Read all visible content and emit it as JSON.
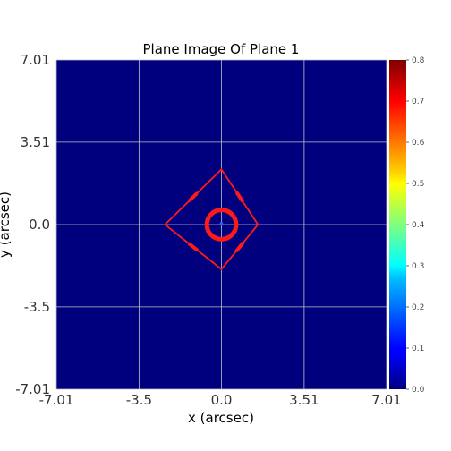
{
  "chart_data": {
    "type": "heatmap",
    "title": "Plane Image Of Plane 1",
    "xlabel": "x (arcsec)",
    "ylabel": "y (arcsec)",
    "xlim": [
      -7.01,
      7.01
    ],
    "ylim": [
      -7.01,
      7.01
    ],
    "x_ticks": [
      -7.01,
      -3.5,
      0.0,
      3.51,
      7.01
    ],
    "x_tick_labels": [
      "-7.01",
      "-3.5",
      "0.0",
      "3.51",
      "7.01"
    ],
    "y_ticks": [
      7.01,
      3.51,
      0.0,
      -3.5,
      -7.01
    ],
    "y_tick_labels": [
      "7.01",
      "3.51",
      "0.0",
      "-3.5",
      "-7.01"
    ],
    "grid": true,
    "colormap": "jet",
    "background_value": 0.0,
    "colorbar": {
      "range": [
        0.0,
        0.8
      ],
      "ticks": [
        0.0,
        0.1,
        0.2,
        0.3,
        0.4,
        0.5,
        0.6,
        0.7,
        0.8
      ],
      "tick_labels": [
        "0.0",
        "0.1",
        "0.2",
        "0.3",
        "0.4",
        "0.5",
        "0.6",
        "0.7",
        "0.8"
      ]
    },
    "caustic_color": "#ff1a1a",
    "caustic_outer": [
      [
        0.0,
        2.35
      ],
      [
        1.55,
        0.0
      ],
      [
        0.0,
        -1.9
      ],
      [
        -2.4,
        0.0
      ]
    ],
    "caustic_inner_radius": 0.62,
    "bright_spot": [
      0.0,
      0.05
    ],
    "colors": {
      "background": "#00007f",
      "grid": "#c0c0c0"
    }
  }
}
